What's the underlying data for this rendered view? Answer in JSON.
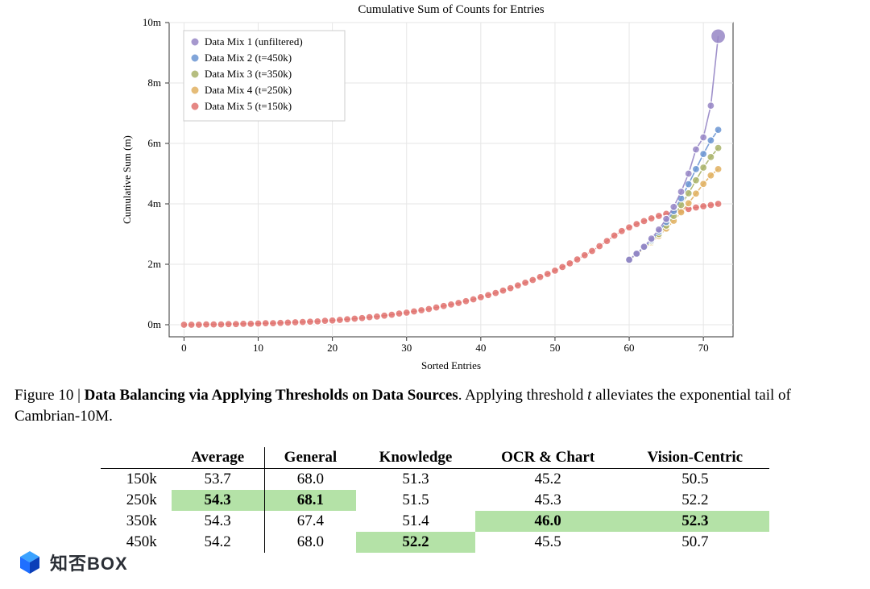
{
  "chart": {
    "type": "line",
    "title": "Cumulative Sum of Counts for Entries",
    "title_fontsize": 15,
    "xlabel": "Sorted Entries",
    "ylabel": "Cumulative Sum (m)",
    "label_fontsize": 13,
    "background_color": "#ffffff",
    "grid_color": "#e6e6e6",
    "axis_color": "#333333",
    "xlim": [
      -2,
      74
    ],
    "ylim": [
      -0.4,
      10
    ],
    "xticks": [
      0,
      10,
      20,
      30,
      40,
      50,
      60,
      70
    ],
    "yticks": [
      0,
      2,
      4,
      6,
      8,
      10
    ],
    "ytick_labels": [
      "0m",
      "2m",
      "4m",
      "6m",
      "8m",
      "10m"
    ],
    "legend": {
      "position": "upper-left",
      "bg": "#ffffff",
      "border": "#cccccc",
      "fontsize": 13,
      "items": [
        {
          "label": "Data Mix 1 (unfiltered)",
          "color": "#9686c5"
        },
        {
          "label": "Data Mix 2 (t=450k)",
          "color": "#6b95d2"
        },
        {
          "label": "Data Mix 3 (t=350k)",
          "color": "#a9b36a"
        },
        {
          "label": "Data Mix 4 (t=250k)",
          "color": "#e0b060"
        },
        {
          "label": "Data Mix 5 (t=150k)",
          "color": "#e1726f"
        }
      ]
    },
    "marker_stroke": "#ffffff",
    "marker_stroke_width": 1.2,
    "line_width": 1.6,
    "marker_radius_default": 4.5,
    "marker_radius_emphasis": 9,
    "x_common": [
      0,
      1,
      2,
      3,
      4,
      5,
      6,
      7,
      8,
      9,
      10,
      11,
      12,
      13,
      14,
      15,
      16,
      17,
      18,
      19,
      20,
      21,
      22,
      23,
      24,
      25,
      26,
      27,
      28,
      29,
      30,
      31,
      32,
      33,
      34,
      35,
      36,
      37,
      38,
      39,
      40,
      41,
      42,
      43,
      44,
      45,
      46,
      47,
      48,
      49,
      50,
      51,
      52,
      53,
      54,
      55,
      56,
      57,
      58,
      59,
      60,
      61,
      62,
      63,
      64,
      65,
      66,
      67,
      68,
      69,
      70,
      71,
      72
    ],
    "series": [
      {
        "name": "Data Mix 1 (unfiltered)",
        "color": "#9686c5",
        "x": [
          60,
          61,
          62,
          63,
          64,
          65,
          66,
          67,
          68,
          69,
          70,
          71,
          72
        ],
        "y": [
          2.15,
          2.35,
          2.58,
          2.85,
          3.15,
          3.5,
          3.9,
          4.4,
          5.0,
          5.8,
          6.2,
          7.25,
          9.55
        ],
        "emph_last": true
      },
      {
        "name": "Data Mix 2 (t=450k)",
        "color": "#6b95d2",
        "x": [
          60,
          61,
          62,
          63,
          64,
          65,
          66,
          67,
          68,
          69,
          70,
          71,
          72
        ],
        "y": [
          2.15,
          2.35,
          2.56,
          2.8,
          3.08,
          3.4,
          3.76,
          4.18,
          4.65,
          5.15,
          5.65,
          6.1,
          6.45
        ]
      },
      {
        "name": "Data Mix 3 (t=350k)",
        "color": "#a9b36a",
        "x": [
          60,
          61,
          62,
          63,
          64,
          65,
          66,
          67,
          68,
          69,
          70,
          71,
          72
        ],
        "y": [
          2.15,
          2.34,
          2.54,
          2.76,
          3.0,
          3.28,
          3.6,
          3.96,
          4.35,
          4.78,
          5.2,
          5.55,
          5.85
        ]
      },
      {
        "name": "Data Mix 4 (t=250k)",
        "color": "#e0b060",
        "x": [
          60,
          61,
          62,
          63,
          64,
          65,
          66,
          67,
          68,
          69,
          70,
          71,
          72
        ],
        "y": [
          2.15,
          2.33,
          2.52,
          2.72,
          2.94,
          3.18,
          3.44,
          3.72,
          4.02,
          4.34,
          4.66,
          4.94,
          5.15
        ]
      },
      {
        "name": "Data Mix 5 (t=150k)",
        "color": "#e1726f",
        "x": [
          0,
          1,
          2,
          3,
          4,
          5,
          6,
          7,
          8,
          9,
          10,
          11,
          12,
          13,
          14,
          15,
          16,
          17,
          18,
          19,
          20,
          21,
          22,
          23,
          24,
          25,
          26,
          27,
          28,
          29,
          30,
          31,
          32,
          33,
          34,
          35,
          36,
          37,
          38,
          39,
          40,
          41,
          42,
          43,
          44,
          45,
          46,
          47,
          48,
          49,
          50,
          51,
          52,
          53,
          54,
          55,
          56,
          57,
          58,
          59,
          60,
          61,
          62,
          63,
          64,
          65,
          66,
          67,
          68,
          69,
          70,
          71,
          72
        ],
        "y": [
          0.0,
          0.0,
          0.0,
          0.01,
          0.01,
          0.01,
          0.02,
          0.02,
          0.03,
          0.03,
          0.04,
          0.05,
          0.05,
          0.06,
          0.07,
          0.08,
          0.09,
          0.1,
          0.11,
          0.13,
          0.14,
          0.16,
          0.18,
          0.2,
          0.22,
          0.25,
          0.27,
          0.3,
          0.33,
          0.37,
          0.4,
          0.44,
          0.48,
          0.52,
          0.57,
          0.62,
          0.67,
          0.72,
          0.78,
          0.84,
          0.91,
          0.98,
          1.05,
          1.13,
          1.21,
          1.3,
          1.39,
          1.48,
          1.58,
          1.68,
          1.79,
          1.91,
          2.03,
          2.16,
          2.3,
          2.44,
          2.6,
          2.77,
          2.95,
          3.1,
          3.22,
          3.33,
          3.43,
          3.52,
          3.6,
          3.67,
          3.73,
          3.78,
          3.83,
          3.88,
          3.92,
          3.96,
          4.0
        ]
      }
    ]
  },
  "caption": {
    "label": "Figure 10 | ",
    "title": "Data Balancing via Applying Thresholds on Data Sources",
    "body_prefix": ". Applying threshold ",
    "body_var": "t",
    "body_suffix": " alleviates the exponential tail of Cambrian-10M."
  },
  "table": {
    "highlight_bg": "#b4e2a7",
    "columns": [
      "",
      "Average",
      "General",
      "Knowledge",
      "OCR & Chart",
      "Vision-Centric"
    ],
    "col_align": [
      "right",
      "center",
      "center",
      "center",
      "center",
      "center"
    ],
    "vline_after_col": 1,
    "rows": [
      {
        "label": "150k",
        "cells": [
          {
            "v": "53.7"
          },
          {
            "v": "68.0"
          },
          {
            "v": "51.3"
          },
          {
            "v": "45.2"
          },
          {
            "v": "50.5"
          }
        ]
      },
      {
        "label": "250k",
        "cells": [
          {
            "v": "54.3",
            "bold": true,
            "hl": true
          },
          {
            "v": "68.1",
            "bold": true,
            "hl": true
          },
          {
            "v": "51.5"
          },
          {
            "v": "45.3"
          },
          {
            "v": "52.2"
          }
        ]
      },
      {
        "label": "350k",
        "cells": [
          {
            "v": "54.3"
          },
          {
            "v": "67.4"
          },
          {
            "v": "51.4"
          },
          {
            "v": "46.0",
            "bold": true,
            "hl": true
          },
          {
            "v": "52.3",
            "bold": true,
            "hl": true
          }
        ]
      },
      {
        "label": "450k",
        "cells": [
          {
            "v": "54.2"
          },
          {
            "v": "68.0"
          },
          {
            "v": "52.2",
            "bold": true,
            "hl": true
          },
          {
            "v": "45.5"
          },
          {
            "v": "50.7"
          }
        ]
      }
    ]
  },
  "watermark": {
    "text": "知否BOX",
    "logo_colors": {
      "top": "#3aa2ff",
      "mid": "#1f6fff",
      "bot": "#0b3fb8"
    }
  }
}
